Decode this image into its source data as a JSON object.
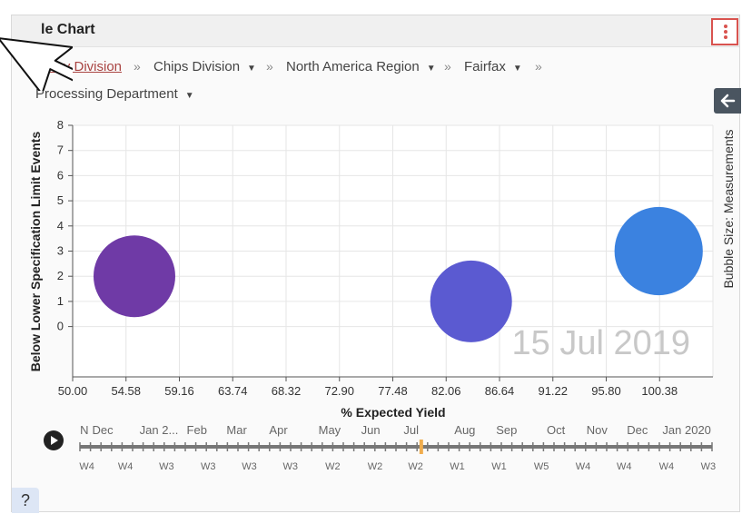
{
  "header": {
    "title": "le Chart"
  },
  "breadcrumbs": [
    {
      "label": "Every Division",
      "link": true
    },
    {
      "label": "Chips Division",
      "dropdown": true
    },
    {
      "label": "North America Region",
      "dropdown": true
    },
    {
      "label": "Fairfax",
      "dropdown": true
    },
    {
      "label": "Processing Department",
      "dropdown": true
    }
  ],
  "breadcrumb_separator": "»",
  "side_panel": {
    "label": "Bubble Size: Measurements",
    "icon": "arrow-left-icon"
  },
  "help": {
    "label": "?"
  },
  "chart_data": {
    "type": "scatter",
    "variant": "bubble",
    "xlabel": "% Expected Yield",
    "ylabel": "Below Lower Specification Limit Events",
    "xlim": [
      50.0,
      104.96
    ],
    "ylim": [
      -2,
      8
    ],
    "x_ticks": [
      "50.00",
      "54.58",
      "59.16",
      "63.74",
      "68.32",
      "72.90",
      "77.48",
      "82.06",
      "86.64",
      "91.22",
      "95.80",
      "100.38"
    ],
    "x_tick_values": [
      50.0,
      54.58,
      59.16,
      63.74,
      68.32,
      72.9,
      77.48,
      82.06,
      86.64,
      91.22,
      95.8,
      100.38
    ],
    "y_ticks": [
      "0",
      "1",
      "2",
      "3",
      "4",
      "5",
      "6",
      "7",
      "8"
    ],
    "y_tick_values": [
      0,
      1,
      2,
      3,
      4,
      5,
      6,
      7,
      8
    ],
    "grid": true,
    "watermark": "15 Jul 2019",
    "points": [
      {
        "x": 55.3,
        "y": 2,
        "size": 1,
        "color": "#6f3aa6"
      },
      {
        "x": 84.2,
        "y": 1,
        "size": 1,
        "color": "#5b5ad1"
      },
      {
        "x": 100.3,
        "y": 3,
        "size": 1.08,
        "color": "#3b82e0"
      }
    ]
  },
  "timeline": {
    "play_icon": "play-icon",
    "months": [
      {
        "label": "N",
        "pos": 0.007
      },
      {
        "label": "Dec",
        "pos": 0.036
      },
      {
        "label": "Jan 2...",
        "pos": 0.125
      },
      {
        "label": "Feb",
        "pos": 0.185
      },
      {
        "label": "Mar",
        "pos": 0.248
      },
      {
        "label": "Apr",
        "pos": 0.314
      },
      {
        "label": "May",
        "pos": 0.395
      },
      {
        "label": "Jun",
        "pos": 0.46
      },
      {
        "label": "Jul",
        "pos": 0.524
      },
      {
        "label": "Aug",
        "pos": 0.609
      },
      {
        "label": "Sep",
        "pos": 0.675
      },
      {
        "label": "Oct",
        "pos": 0.753
      },
      {
        "label": "Nov",
        "pos": 0.818
      },
      {
        "label": "Dec",
        "pos": 0.882
      },
      {
        "label": "Jan 2020",
        "pos": 0.96
      }
    ],
    "weeks": [
      {
        "label": "W4",
        "pos": 0.011
      },
      {
        "label": "W4",
        "pos": 0.072
      },
      {
        "label": "W3",
        "pos": 0.137
      },
      {
        "label": "W3",
        "pos": 0.203
      },
      {
        "label": "W3",
        "pos": 0.268
      },
      {
        "label": "W3",
        "pos": 0.333
      },
      {
        "label": "W2",
        "pos": 0.4
      },
      {
        "label": "W2",
        "pos": 0.467
      },
      {
        "label": "W2",
        "pos": 0.531
      },
      {
        "label": "W1",
        "pos": 0.597
      },
      {
        "label": "W1",
        "pos": 0.663
      },
      {
        "label": "W5",
        "pos": 0.73
      },
      {
        "label": "W4",
        "pos": 0.796
      },
      {
        "label": "W4",
        "pos": 0.861
      },
      {
        "label": "W4",
        "pos": 0.928
      },
      {
        "label": "W3",
        "pos": 0.994
      }
    ],
    "current_pos": 0.54,
    "current_color": "#f0ad4e"
  }
}
